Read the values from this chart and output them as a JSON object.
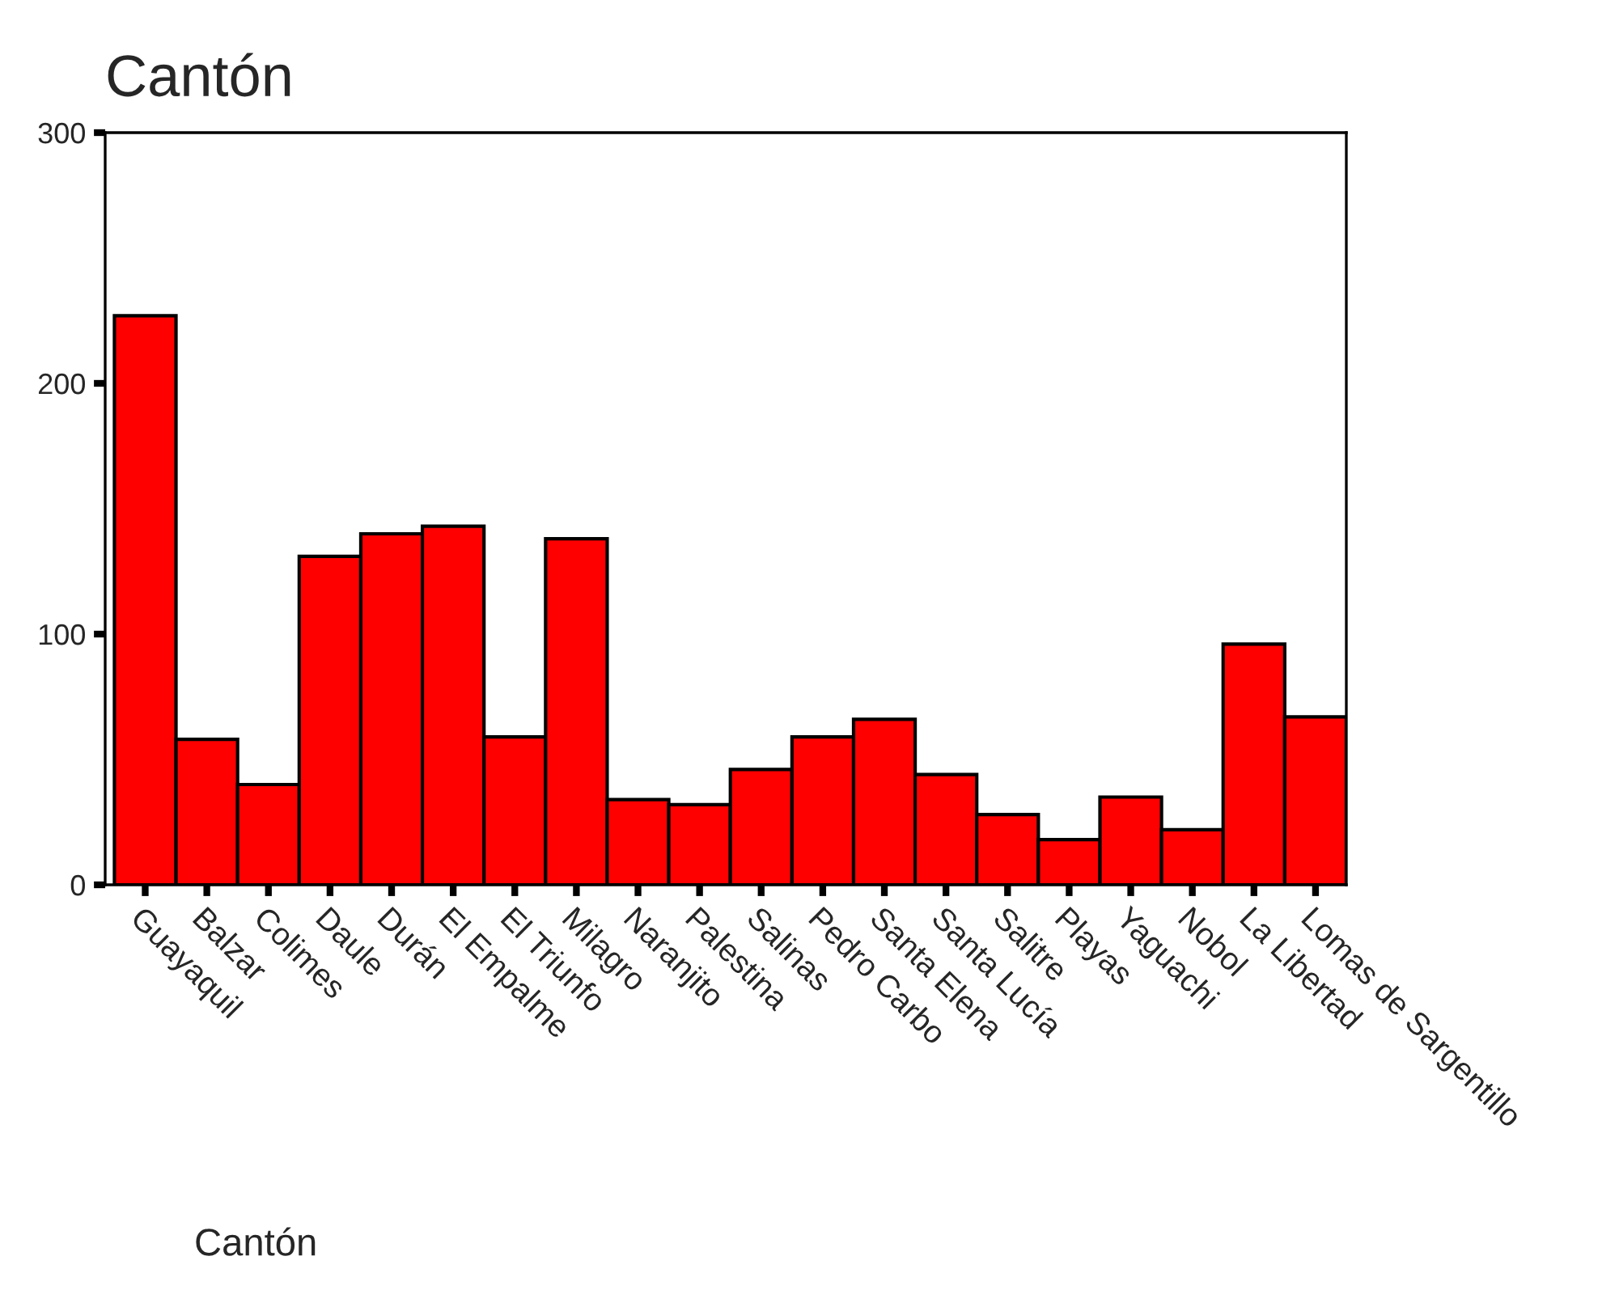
{
  "chart_data": {
    "type": "bar",
    "title": "Cantón",
    "xlabel": "Cantón",
    "categories": [
      "Guayaquil",
      "Balzar",
      "Colimes",
      "Daule",
      "Durán",
      "El Empalme",
      "El Triunfo",
      "Milagro",
      "Naranjito",
      "Palestina",
      "Salinas",
      "Pedro Carbo",
      "Santa Elena",
      "Santa Lucía",
      "Salitre",
      "Playas",
      "Yaguachi",
      "Nobol",
      "La Libertad",
      "Lomas de Sargentillo"
    ],
    "values": [
      227,
      58,
      40,
      131,
      140,
      143,
      59,
      138,
      34,
      32,
      46,
      59,
      66,
      44,
      28,
      18,
      35,
      22,
      96,
      67
    ],
    "color": "#ff0000",
    "ylim": [
      0,
      300
    ],
    "yticks": [
      0,
      100,
      200,
      300
    ],
    "grid": false,
    "legend": false
  }
}
